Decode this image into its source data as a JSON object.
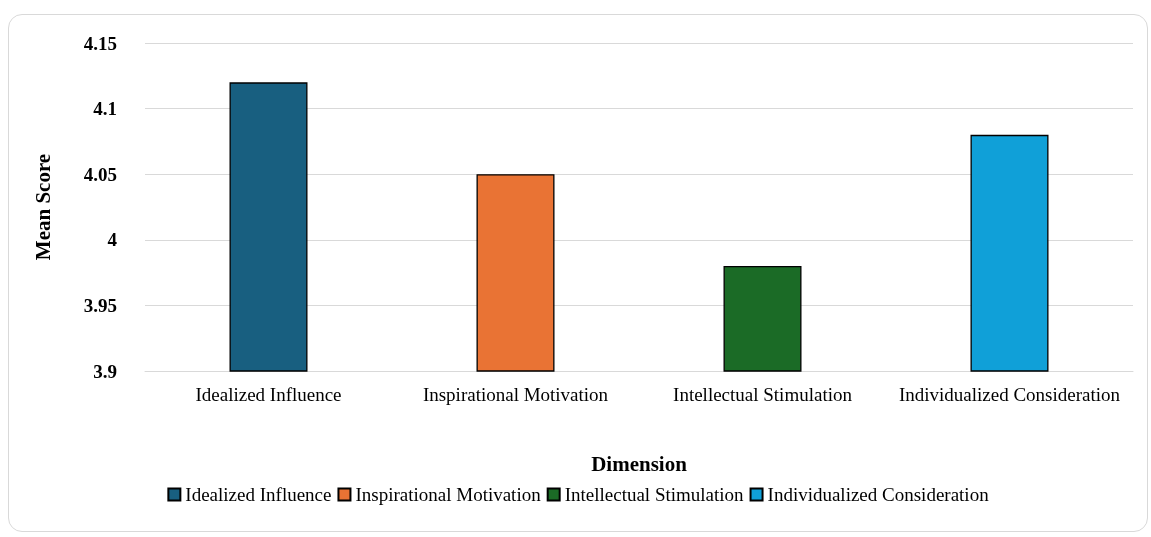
{
  "chart_data": {
    "type": "bar",
    "xlabel": "Dimension",
    "ylabel": "Mean Score",
    "categories": [
      "Idealized Influence",
      "Inspirational Motivation",
      "Intellectual Stimulation",
      "Individualized Consideration"
    ],
    "series": [
      {
        "name": "Idealized Influence",
        "color": "#185f80",
        "values": [
          4.12,
          null,
          null,
          null
        ]
      },
      {
        "name": "Inspirational Motivation",
        "color": "#e97334",
        "values": [
          null,
          4.05,
          null,
          null
        ]
      },
      {
        "name": "Intellectual Stimulation",
        "color": "#1b6b26",
        "values": [
          null,
          null,
          3.98,
          null
        ]
      },
      {
        "name": "Individualized Consideration",
        "color": "#10a0d8",
        "values": [
          null,
          null,
          null,
          4.08
        ]
      }
    ],
    "ylim": [
      3.9,
      4.15
    ],
    "yticks": [
      3.9,
      3.95,
      4,
      4.05,
      4.1,
      4.15
    ],
    "grid": "y",
    "legend": "bottom"
  }
}
